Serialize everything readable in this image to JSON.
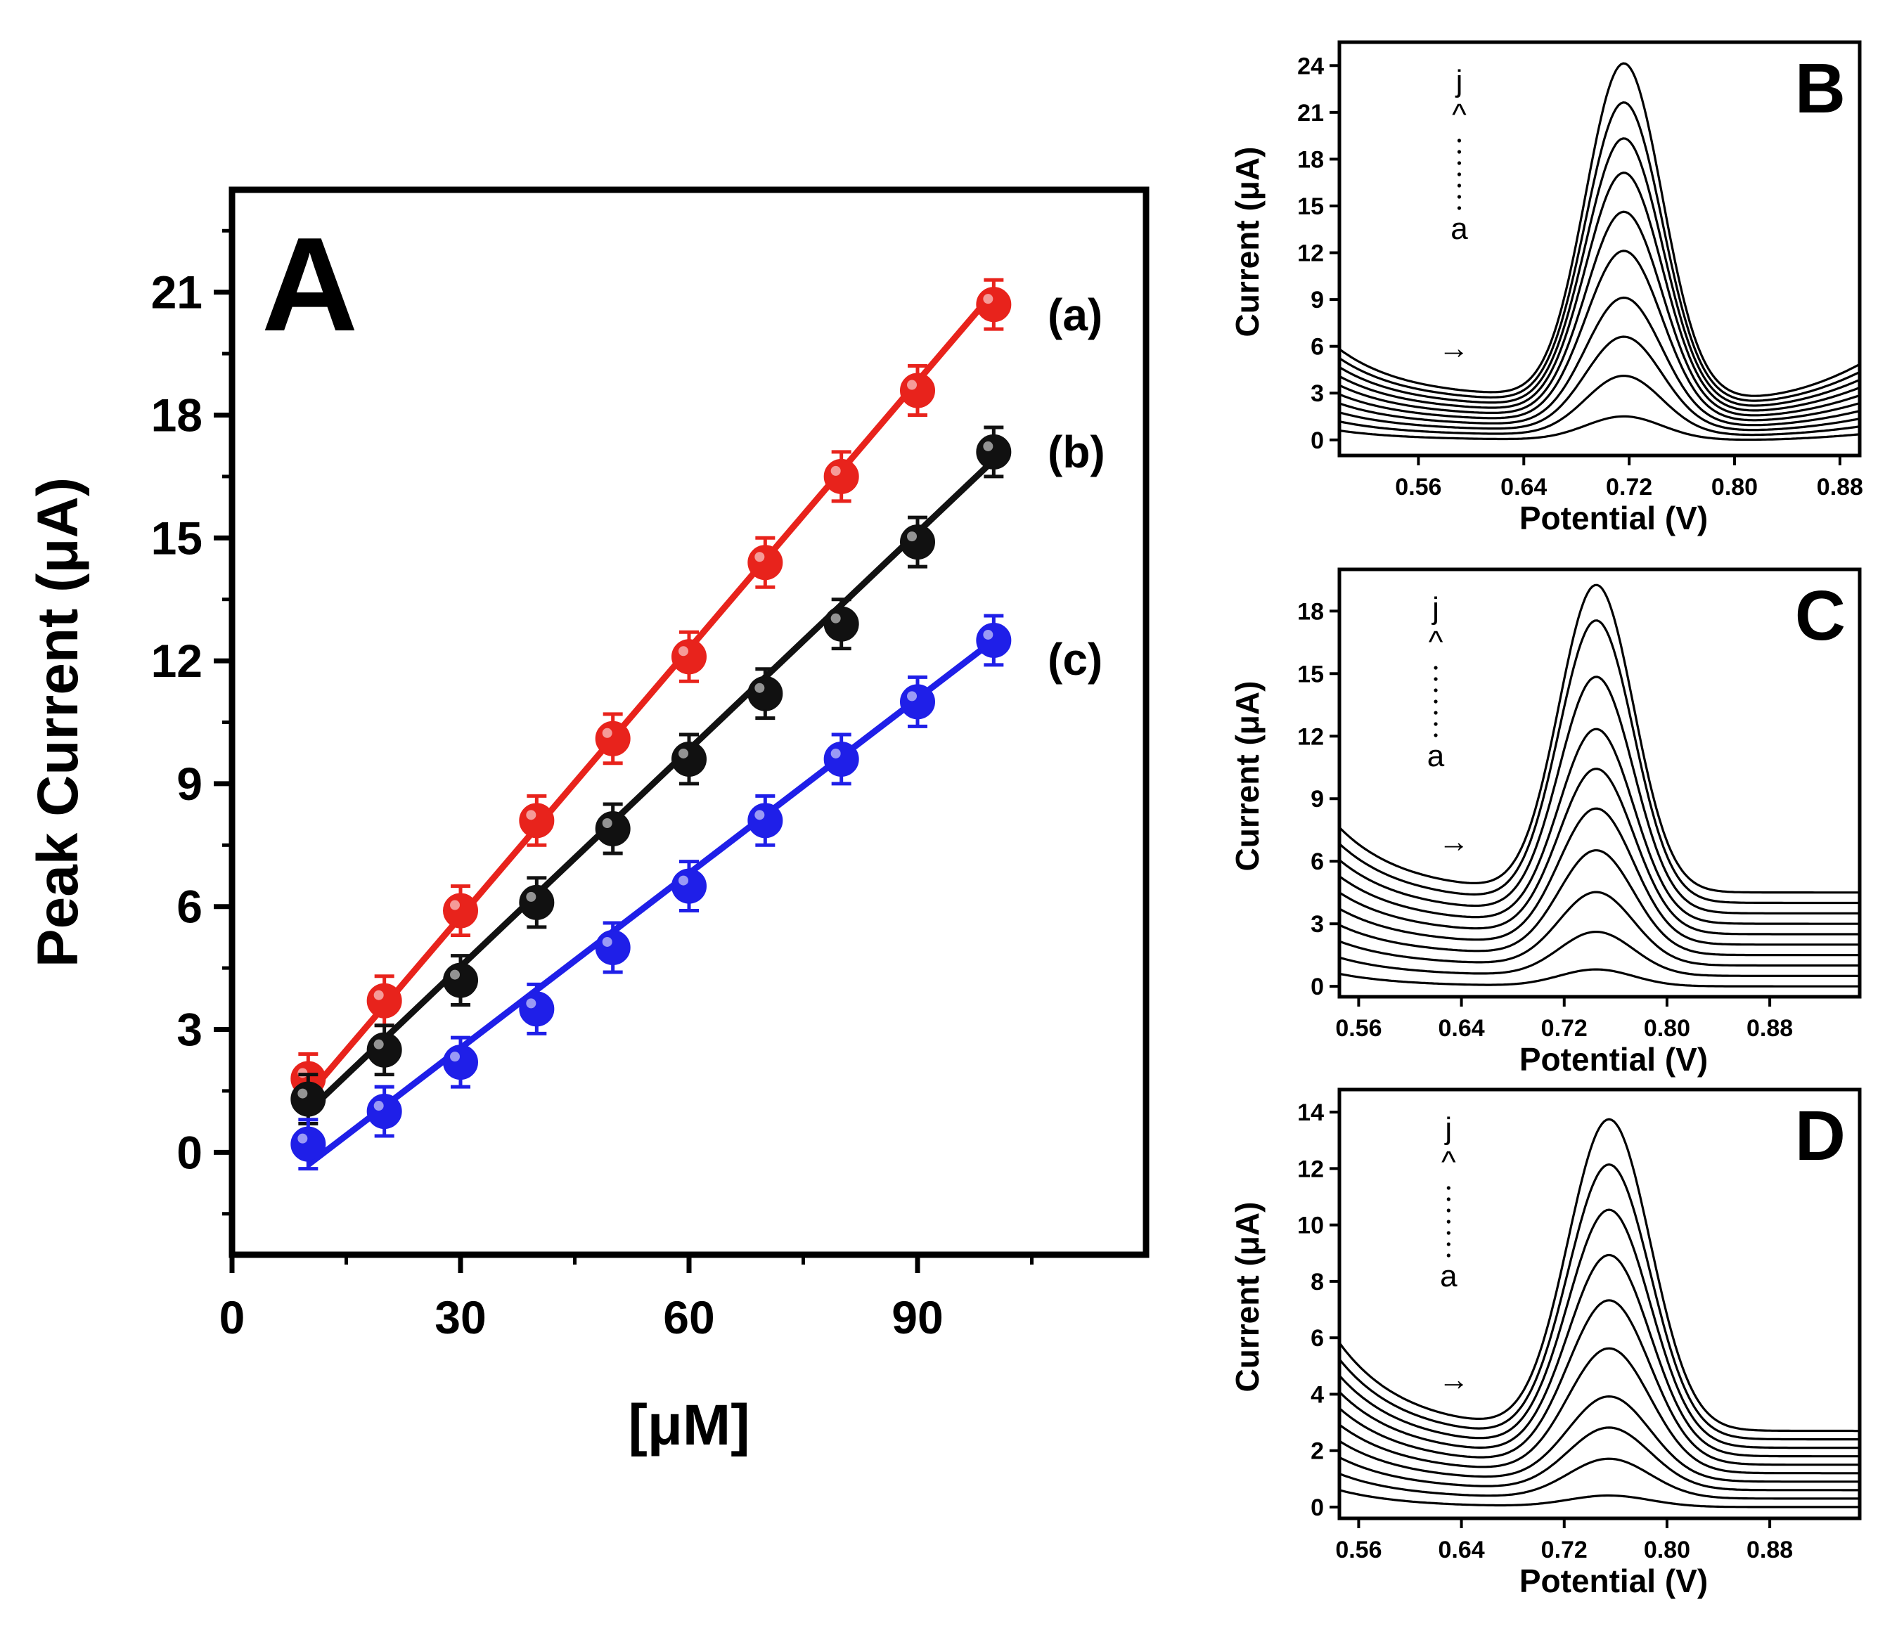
{
  "chart_data": [
    {
      "id": "A",
      "type": "scatter",
      "panel_label": "A",
      "xlabel": "[μM]",
      "ylabel": "Peak Current (μA)",
      "xlim": [
        0,
        120
      ],
      "ylim": [
        -2.5,
        23.5
      ],
      "xticks": [
        0,
        30,
        60,
        90
      ],
      "yticks": [
        0,
        3,
        6,
        9,
        12,
        15,
        18,
        21
      ],
      "x": [
        10,
        20,
        30,
        40,
        50,
        60,
        70,
        80,
        90,
        100
      ],
      "series": [
        {
          "name": "(a)",
          "color": "#e8231c",
          "values": [
            1.8,
            3.7,
            5.9,
            8.1,
            10.1,
            12.1,
            14.4,
            16.5,
            18.6,
            20.7
          ],
          "error": 0.6,
          "fit": [
            1.4,
            21.0
          ]
        },
        {
          "name": "(b)",
          "color": "#111111",
          "values": [
            1.3,
            2.5,
            4.2,
            6.1,
            7.9,
            9.6,
            11.2,
            12.9,
            14.9,
            17.1
          ],
          "error": 0.6,
          "fit": [
            1.0,
            16.9
          ]
        },
        {
          "name": "(c)",
          "color": "#1f1fe8",
          "values": [
            0.2,
            1.0,
            2.2,
            3.5,
            5.0,
            6.5,
            8.1,
            9.6,
            11.0,
            12.5
          ],
          "error": 0.6,
          "fit": [
            -0.3,
            12.5
          ]
        }
      ]
    },
    {
      "id": "B",
      "type": "line",
      "panel_label": "B",
      "xlabel": "Potential (V)",
      "ylabel": "Current (μA)",
      "xlim": [
        0.5,
        0.895
      ],
      "ylim": [
        -1,
        25.5
      ],
      "xticks": [
        "0.56",
        "0.64",
        "0.72",
        "0.80",
        "0.88"
      ],
      "yticks": [
        0,
        3,
        6,
        9,
        12,
        15,
        18,
        21,
        24
      ],
      "peak_potential": 0.716,
      "peak_heights": [
        1.5,
        4.1,
        6.6,
        9.1,
        12.1,
        14.6,
        17.1,
        19.3,
        21.6,
        24.1
      ],
      "baselines": [
        0,
        0.3,
        0.6,
        0.9,
        1.2,
        1.5,
        1.8,
        2.1,
        2.4,
        2.7
      ],
      "curve_start_label": "a",
      "curve_end_label": "j",
      "direction_mark": "^",
      "arrow_glyph": "→"
    },
    {
      "id": "C",
      "type": "line",
      "panel_label": "C",
      "xlabel": "Potential (V)",
      "ylabel": "Current (μA)",
      "xlim": [
        0.545,
        0.95
      ],
      "ylim": [
        -0.5,
        20.0
      ],
      "xticks": [
        "0.56",
        "0.64",
        "0.72",
        "0.80",
        "0.88"
      ],
      "yticks": [
        0,
        3,
        6,
        9,
        12,
        15,
        18
      ],
      "peak_potential": 0.745,
      "peak_heights": [
        0.8,
        2.6,
        4.5,
        6.5,
        8.5,
        10.4,
        12.3,
        14.8,
        17.5,
        19.2
      ],
      "baselines": [
        0,
        0.5,
        1.0,
        1.5,
        2.0,
        2.5,
        3.0,
        3.5,
        4.0,
        4.5
      ],
      "curve_start_label": "a",
      "curve_end_label": "j",
      "direction_mark": "^",
      "arrow_glyph": "→"
    },
    {
      "id": "D",
      "type": "line",
      "panel_label": "D",
      "xlabel": "Potential (V)",
      "ylabel": "Current (μA)",
      "xlim": [
        0.545,
        0.95
      ],
      "ylim": [
        -0.4,
        14.8
      ],
      "xticks": [
        "0.56",
        "0.64",
        "0.72",
        "0.80",
        "0.88"
      ],
      "yticks": [
        0,
        2,
        4,
        6,
        8,
        10,
        12,
        14
      ],
      "peak_potential": 0.755,
      "peak_heights": [
        0.4,
        1.7,
        2.8,
        3.9,
        5.6,
        7.3,
        8.9,
        10.5,
        12.1,
        13.7
      ],
      "baselines": [
        0,
        0.3,
        0.6,
        0.9,
        1.2,
        1.5,
        1.8,
        2.1,
        2.4,
        2.7
      ],
      "curve_start_label": "a",
      "curve_end_label": "j",
      "direction_mark": "^",
      "arrow_glyph": "→"
    }
  ]
}
